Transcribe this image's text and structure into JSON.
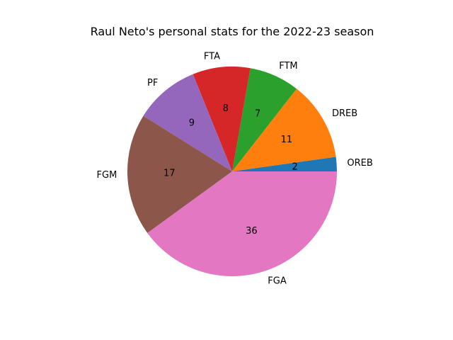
{
  "chart_data": {
    "type": "pie",
    "title": "Raul Neto's personal stats for the 2022-23 season",
    "labels": [
      "OREB",
      "DREB",
      "FTM",
      "FTA",
      "PF",
      "FGM",
      "FGA"
    ],
    "values": [
      2,
      11,
      7,
      8,
      9,
      17,
      36
    ],
    "value_labels": [
      "2",
      "11",
      "7",
      "8",
      "9",
      "17",
      "36"
    ],
    "colors": [
      "#1f77b4",
      "#ff7f0e",
      "#2ca02c",
      "#d62728",
      "#9467bd",
      "#8c564b",
      "#e377c2"
    ],
    "start_angle_deg": 0,
    "direction": "counterclockwise"
  }
}
